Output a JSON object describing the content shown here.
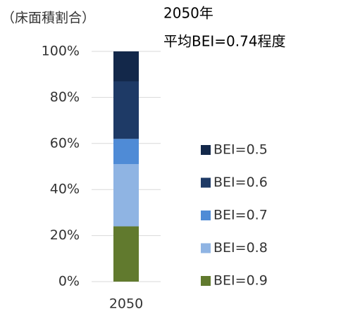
{
  "chart_data": {
    "type": "stacked_bar",
    "title": "2050年",
    "subtitle": "平均BEI=0.74程度",
    "y_label": "（床面積割合）",
    "categories": [
      "2050"
    ],
    "series": [
      {
        "name": "BEI=0.9",
        "color": "#617a2e",
        "values": [
          24
        ]
      },
      {
        "name": "BEI=0.8",
        "color": "#8fb4e3",
        "values": [
          27
        ]
      },
      {
        "name": "BEI=0.7",
        "color": "#4f8bd6",
        "values": [
          11
        ]
      },
      {
        "name": "BEI=0.6",
        "color": "#1e3a66",
        "values": [
          25
        ]
      },
      {
        "name": "BEI=0.5",
        "color": "#13284a",
        "values": [
          13
        ]
      }
    ],
    "ylim": [
      0,
      100
    ],
    "yticks": [
      {
        "value": 0,
        "label": "0%"
      },
      {
        "value": 20,
        "label": "20%"
      },
      {
        "value": 40,
        "label": "40%"
      },
      {
        "value": 60,
        "label": "60%"
      },
      {
        "value": 80,
        "label": "80%"
      },
      {
        "value": 100,
        "label": "100%"
      }
    ],
    "grid": true,
    "legend": "right"
  }
}
